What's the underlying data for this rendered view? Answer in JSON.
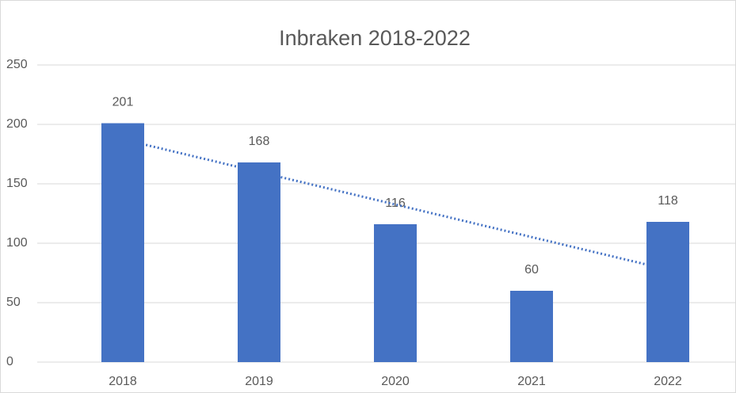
{
  "chart_data": {
    "type": "bar",
    "title": "Inbraken 2018-2022",
    "categories": [
      "2018",
      "2019",
      "2020",
      "2021",
      "2022"
    ],
    "values": [
      201,
      168,
      116,
      60,
      118
    ],
    "color": "#4472c4",
    "ylim": [
      0,
      250
    ],
    "yticks": [
      0,
      50,
      100,
      150,
      200,
      250
    ],
    "grid": true,
    "trendline": "linear",
    "trendline_color": "#4472c4"
  }
}
